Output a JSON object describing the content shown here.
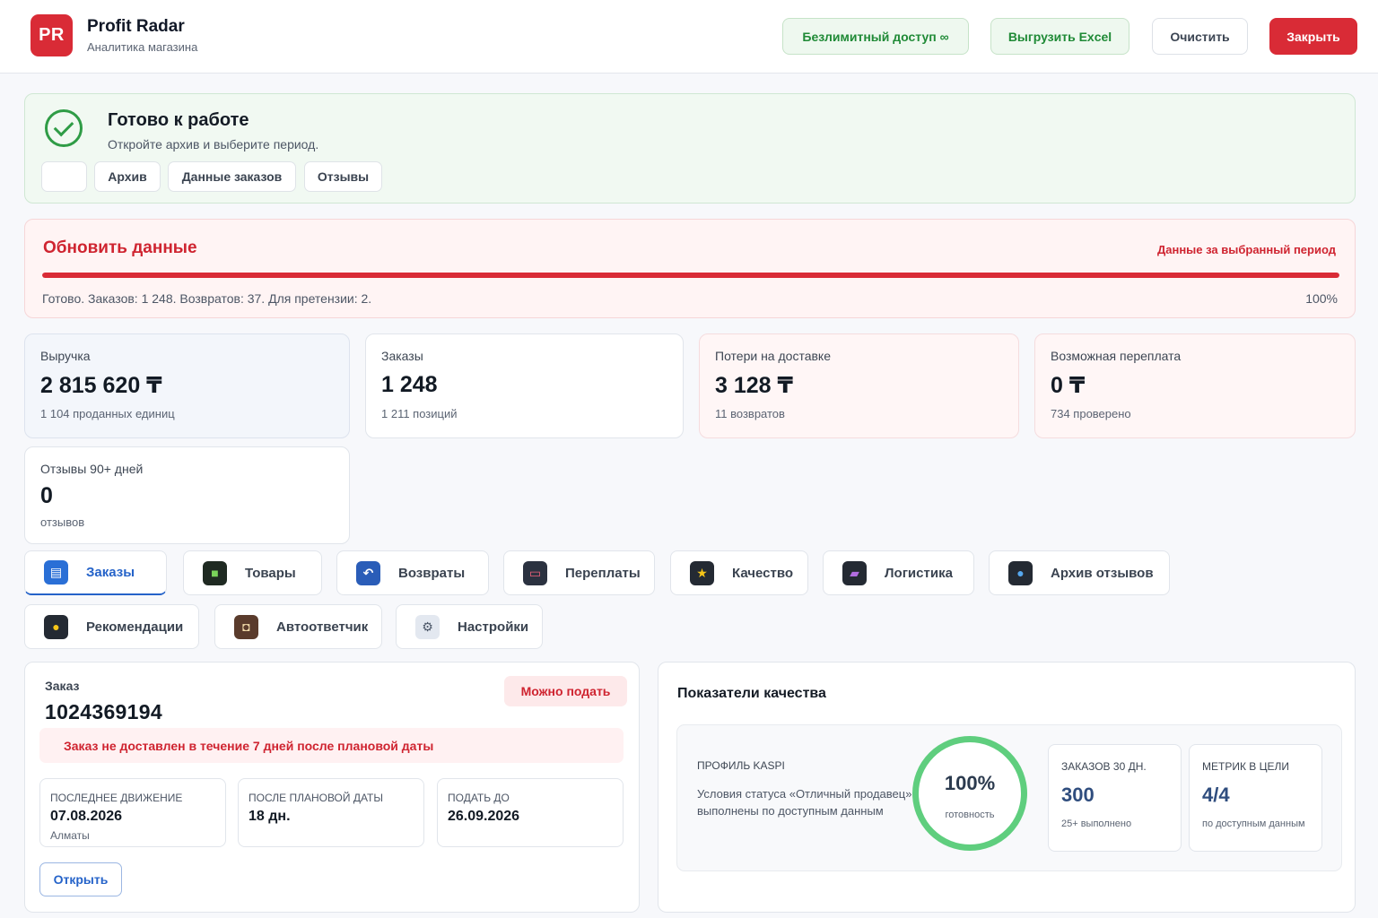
{
  "header": {
    "logo_text": "PR",
    "title": "Profit Radar",
    "subtitle": "Аналитика магазина",
    "unlimited_label": "Безлимитный доступ ∞",
    "export_label": "Выгрузить Excel",
    "clear_label": "Очистить",
    "close_label": "Закрыть"
  },
  "ready": {
    "title": "Готово к работе",
    "subtitle": "Откройте архив и выберите период.",
    "chips": [
      "",
      "Архив",
      "Данные заказов",
      "Отзывы"
    ]
  },
  "update": {
    "title": "Обновить данные",
    "period_note": "Данные за выбранный период",
    "status": "Готово. Заказов: 1 248. Возвратов: 37. Для претензии: 2.",
    "percent_label": "100%",
    "progress_fraction": 1.0
  },
  "stats": [
    {
      "label": "Выручка",
      "value": "2 815 620 ₸",
      "sub": "1 104 проданных единиц"
    },
    {
      "label": "Заказы",
      "value": "1 248",
      "sub": "1 211 позиций"
    },
    {
      "label": "Потери на доставке",
      "value": "3 128 ₸",
      "sub": "11 возвратов"
    },
    {
      "label": "Возможная переплата",
      "value": "0 ₸",
      "sub": "734 проверено"
    },
    {
      "label": "Отзывы 90+ дней",
      "value": "0",
      "sub": "отзывов"
    }
  ],
  "tabs": [
    {
      "label": "Заказы",
      "icon": "store-icon"
    },
    {
      "label": "Товары",
      "icon": "box-icon"
    },
    {
      "label": "Возвраты",
      "icon": "return-arrow-icon"
    },
    {
      "label": "Переплаты",
      "icon": "credit-card-icon"
    },
    {
      "label": "Качество",
      "icon": "star-icon"
    },
    {
      "label": "Логистика",
      "icon": "truck-icon"
    },
    {
      "label": "Архив отзывов",
      "icon": "speech-bubble-icon"
    },
    {
      "label": "Рекомендации",
      "icon": "lightbulb-icon"
    },
    {
      "label": "Автоответчик",
      "icon": "robot-icon"
    },
    {
      "label": "Настройки",
      "icon": "gear-icon"
    }
  ],
  "order": {
    "label": "Заказ",
    "number": "1024369194",
    "badge": "Можно подать",
    "alert": "Заказ не доставлен в течение 7 дней после плановой даты",
    "last_move_label": "Последнее движение",
    "last_move_value": "07.08.2026",
    "last_move_sub": "Алматы",
    "after_plan_label": "После плановой даты",
    "after_plan_value": "18 дн.",
    "deadline_label": "Подать до",
    "deadline_value": "26.09.2026",
    "open_label": "Открыть"
  },
  "quality": {
    "title": "Показатели качества",
    "profile_label": "Профиль Kaspi",
    "profile_text": "Условия статуса «Отличный продавец» выполнены по доступным данным",
    "ring_value": "100%",
    "ring_sub": "готовность",
    "orders_label": "Заказов 30 дн.",
    "orders_value": "300",
    "orders_sub": "25+ выполнено",
    "metrics_label": "Метрик в цели",
    "metrics_value": "4/4",
    "metrics_sub": "по доступным данным"
  },
  "colors": {
    "accent_red": "#d92b36",
    "accent_green": "#1f8a36",
    "accent_blue": "#2563c9",
    "ring_green": "#5fce7e"
  }
}
